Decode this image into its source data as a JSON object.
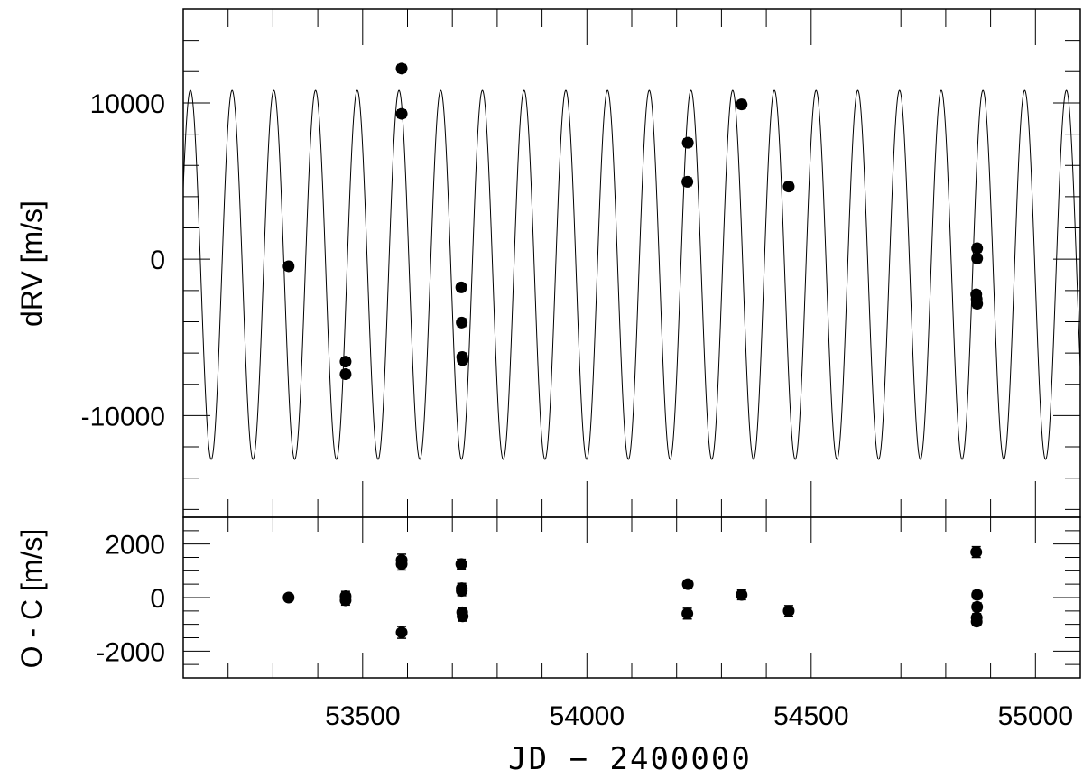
{
  "chart_data": [
    {
      "type": "scatter",
      "panel": "top",
      "title": "",
      "xlabel": "JD − 2400000",
      "ylabel": "dRV [m/s]",
      "xlim": [
        53100,
        55100
      ],
      "ylim": [
        -16500,
        16000
      ],
      "grid": false,
      "x_ticks": [
        {
          "value": 53500,
          "label": "53500"
        },
        {
          "value": 54000,
          "label": "54000"
        },
        {
          "value": 54500,
          "label": "54500"
        },
        {
          "value": 55000,
          "label": "55000"
        }
      ],
      "y_ticks": [
        {
          "value": 10000,
          "label": "10000"
        },
        {
          "value": 0,
          "label": "0"
        },
        {
          "value": -10000,
          "label": "-10000"
        }
      ],
      "model_curve": {
        "type": "line",
        "shape": "sinusoid",
        "period_days": 93.0,
        "amplitude": 11800,
        "offset": -1000,
        "peak_time": 53116
      },
      "points": [
        {
          "x": 53335,
          "y": -450,
          "err": 250
        },
        {
          "x": 53462,
          "y": -6550,
          "err": 250
        },
        {
          "x": 53462,
          "y": -7350,
          "err": 250
        },
        {
          "x": 53587,
          "y": 12200,
          "err": 250
        },
        {
          "x": 53587,
          "y": 9300,
          "err": 250
        },
        {
          "x": 53720,
          "y": -1800,
          "err": 250
        },
        {
          "x": 53721,
          "y": -4050,
          "err": 250
        },
        {
          "x": 53722,
          "y": -6250,
          "err": 250
        },
        {
          "x": 53723,
          "y": -6450,
          "err": 250
        },
        {
          "x": 54225,
          "y": 7450,
          "err": 250
        },
        {
          "x": 54224,
          "y": 4950,
          "err": 250
        },
        {
          "x": 54345,
          "y": 9900,
          "err": 250
        },
        {
          "x": 54450,
          "y": 4650,
          "err": 250
        },
        {
          "x": 54870,
          "y": 700,
          "err": 250
        },
        {
          "x": 54870,
          "y": 50,
          "err": 250
        },
        {
          "x": 54868,
          "y": -2250,
          "err": 250
        },
        {
          "x": 54869,
          "y": -2550,
          "err": 250
        },
        {
          "x": 54870,
          "y": -2850,
          "err": 250
        }
      ]
    },
    {
      "type": "scatter",
      "panel": "residuals",
      "title": "",
      "xlabel": "JD − 2400000",
      "ylabel": "O - C [m/s]",
      "xlim": [
        53100,
        55100
      ],
      "ylim": [
        -3000,
        3000
      ],
      "grid": false,
      "y_ticks": [
        {
          "value": 2000,
          "label": "2000"
        },
        {
          "value": 0,
          "label": "0"
        },
        {
          "value": -2000,
          "label": "-2000"
        }
      ],
      "points": [
        {
          "x": 53335,
          "y": 0,
          "err": 120
        },
        {
          "x": 53462,
          "y": 50,
          "err": 180
        },
        {
          "x": 53462,
          "y": -100,
          "err": 180
        },
        {
          "x": 53587,
          "y": 1400,
          "err": 220
        },
        {
          "x": 53587,
          "y": 1250,
          "err": 220
        },
        {
          "x": 53587,
          "y": -1300,
          "err": 220
        },
        {
          "x": 53720,
          "y": 1250,
          "err": 180
        },
        {
          "x": 53721,
          "y": 350,
          "err": 180
        },
        {
          "x": 53721,
          "y": 250,
          "err": 180
        },
        {
          "x": 53722,
          "y": -550,
          "err": 180
        },
        {
          "x": 53723,
          "y": -700,
          "err": 180
        },
        {
          "x": 54225,
          "y": 500,
          "err": 150
        },
        {
          "x": 54224,
          "y": -600,
          "err": 200
        },
        {
          "x": 54345,
          "y": 100,
          "err": 180
        },
        {
          "x": 54450,
          "y": -500,
          "err": 200
        },
        {
          "x": 54868,
          "y": 1700,
          "err": 200
        },
        {
          "x": 54870,
          "y": 100,
          "err": 150
        },
        {
          "x": 54870,
          "y": -350,
          "err": 150
        },
        {
          "x": 54869,
          "y": -750,
          "err": 150
        },
        {
          "x": 54869,
          "y": -900,
          "err": 150
        }
      ]
    }
  ]
}
